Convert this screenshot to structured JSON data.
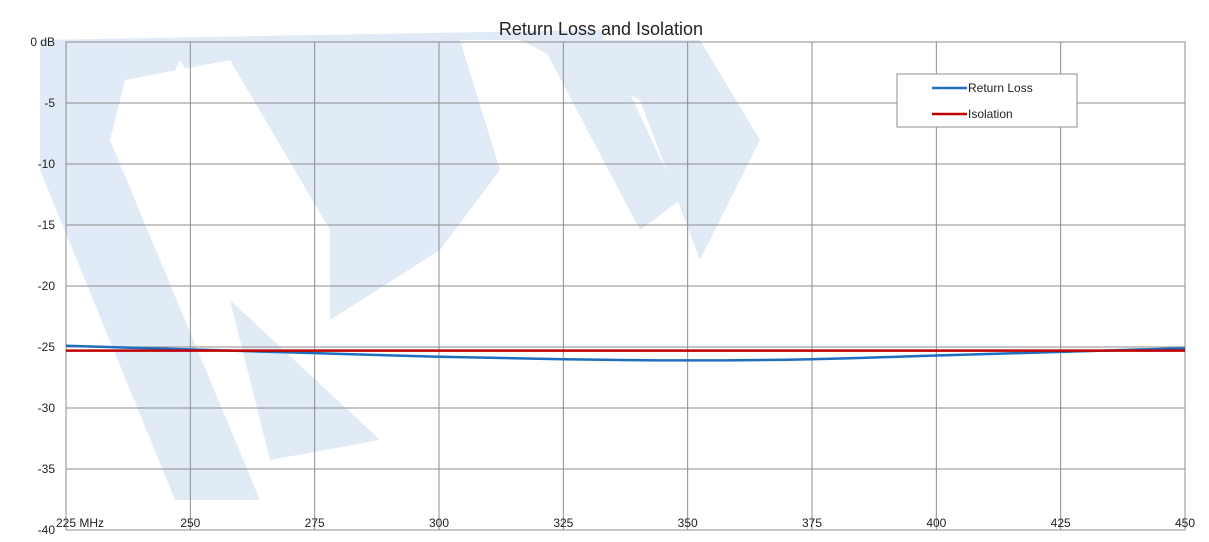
{
  "chart_data": {
    "type": "line",
    "title": "Return Loss and Isolation",
    "xlim": [
      225,
      450
    ],
    "ylim": [
      -40,
      0
    ],
    "x_ticks": [
      225,
      250,
      275,
      300,
      325,
      350,
      375,
      400,
      425,
      450
    ],
    "x_tick_labels": [
      "225  MHz",
      "250",
      "275",
      "300",
      "325",
      "350",
      "375",
      "400",
      "425",
      "450"
    ],
    "y_ticks": [
      0,
      -5,
      -10,
      -15,
      -20,
      -25,
      -30,
      -35,
      -40
    ],
    "y_tick_labels": [
      "0 dB",
      "-5",
      "-10",
      "-15",
      "-20",
      "-25",
      "-30",
      "-35",
      "-40"
    ],
    "grid": true,
    "legend_position": "top-right",
    "series": [
      {
        "name": "Return Loss",
        "color": "#1f6fc1",
        "x": [
          225,
          250,
          275,
          300,
          325,
          350,
          375,
          400,
          425,
          450
        ],
        "y": [
          -24.9,
          -25.2,
          -25.5,
          -25.8,
          -26.0,
          -26.1,
          -26.0,
          -25.7,
          -25.4,
          -25.1
        ]
      },
      {
        "name": "Isolation",
        "color": "#c00000",
        "x": [
          225,
          450
        ],
        "y": [
          -25.3,
          -25.3
        ]
      }
    ]
  },
  "watermark": {
    "color": "#dde9f6"
  }
}
